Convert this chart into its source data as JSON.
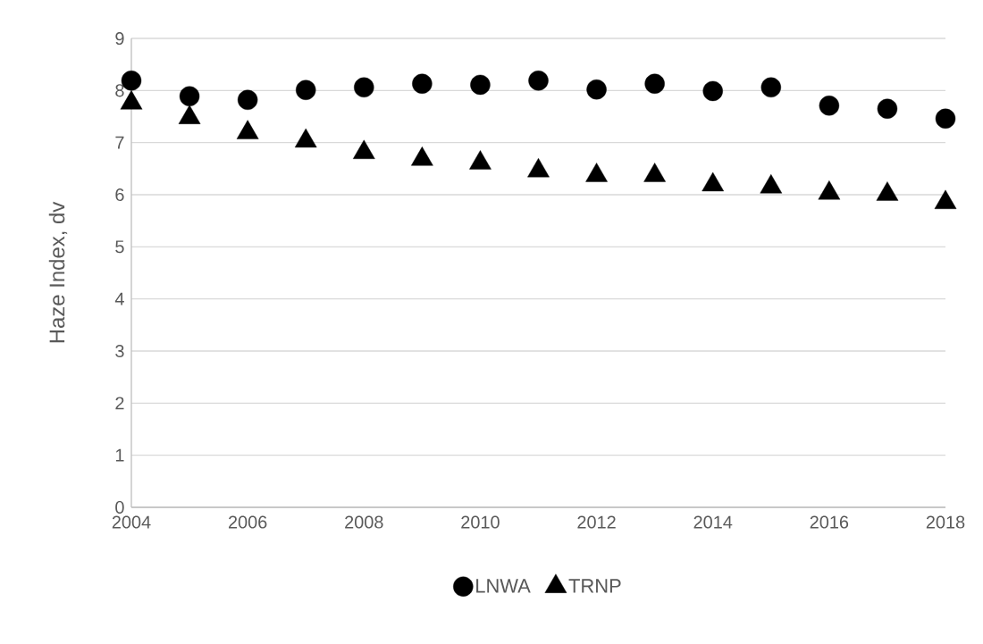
{
  "chart_data": {
    "type": "scatter",
    "ylabel": "Haze Index, dv",
    "x": [
      2004,
      2005,
      2006,
      2007,
      2008,
      2009,
      2010,
      2011,
      2012,
      2013,
      2014,
      2015,
      2016,
      2017,
      2018
    ],
    "series": [
      {
        "name": "LNWA",
        "color": "#000000",
        "marker": "circle",
        "values": [
          8.19,
          7.89,
          7.82,
          8.01,
          8.06,
          8.13,
          8.11,
          8.19,
          8.02,
          8.13,
          7.99,
          8.06,
          7.71,
          7.65,
          7.46
        ]
      },
      {
        "name": "TRNP",
        "color": "#000000",
        "marker": "triangle",
        "values": [
          7.76,
          7.48,
          7.19,
          7.03,
          6.81,
          6.68,
          6.61,
          6.46,
          6.37,
          6.37,
          6.19,
          6.15,
          6.03,
          6.01,
          5.85
        ]
      }
    ],
    "xlim": [
      2004,
      2018
    ],
    "xticks": [
      2004,
      2006,
      2008,
      2010,
      2012,
      2014,
      2016,
      2018
    ],
    "ylim": [
      0,
      9
    ],
    "yticks": [
      0,
      1,
      2,
      3,
      4,
      5,
      6,
      7,
      8,
      9
    ],
    "grid": "y",
    "legend": "bottom"
  }
}
